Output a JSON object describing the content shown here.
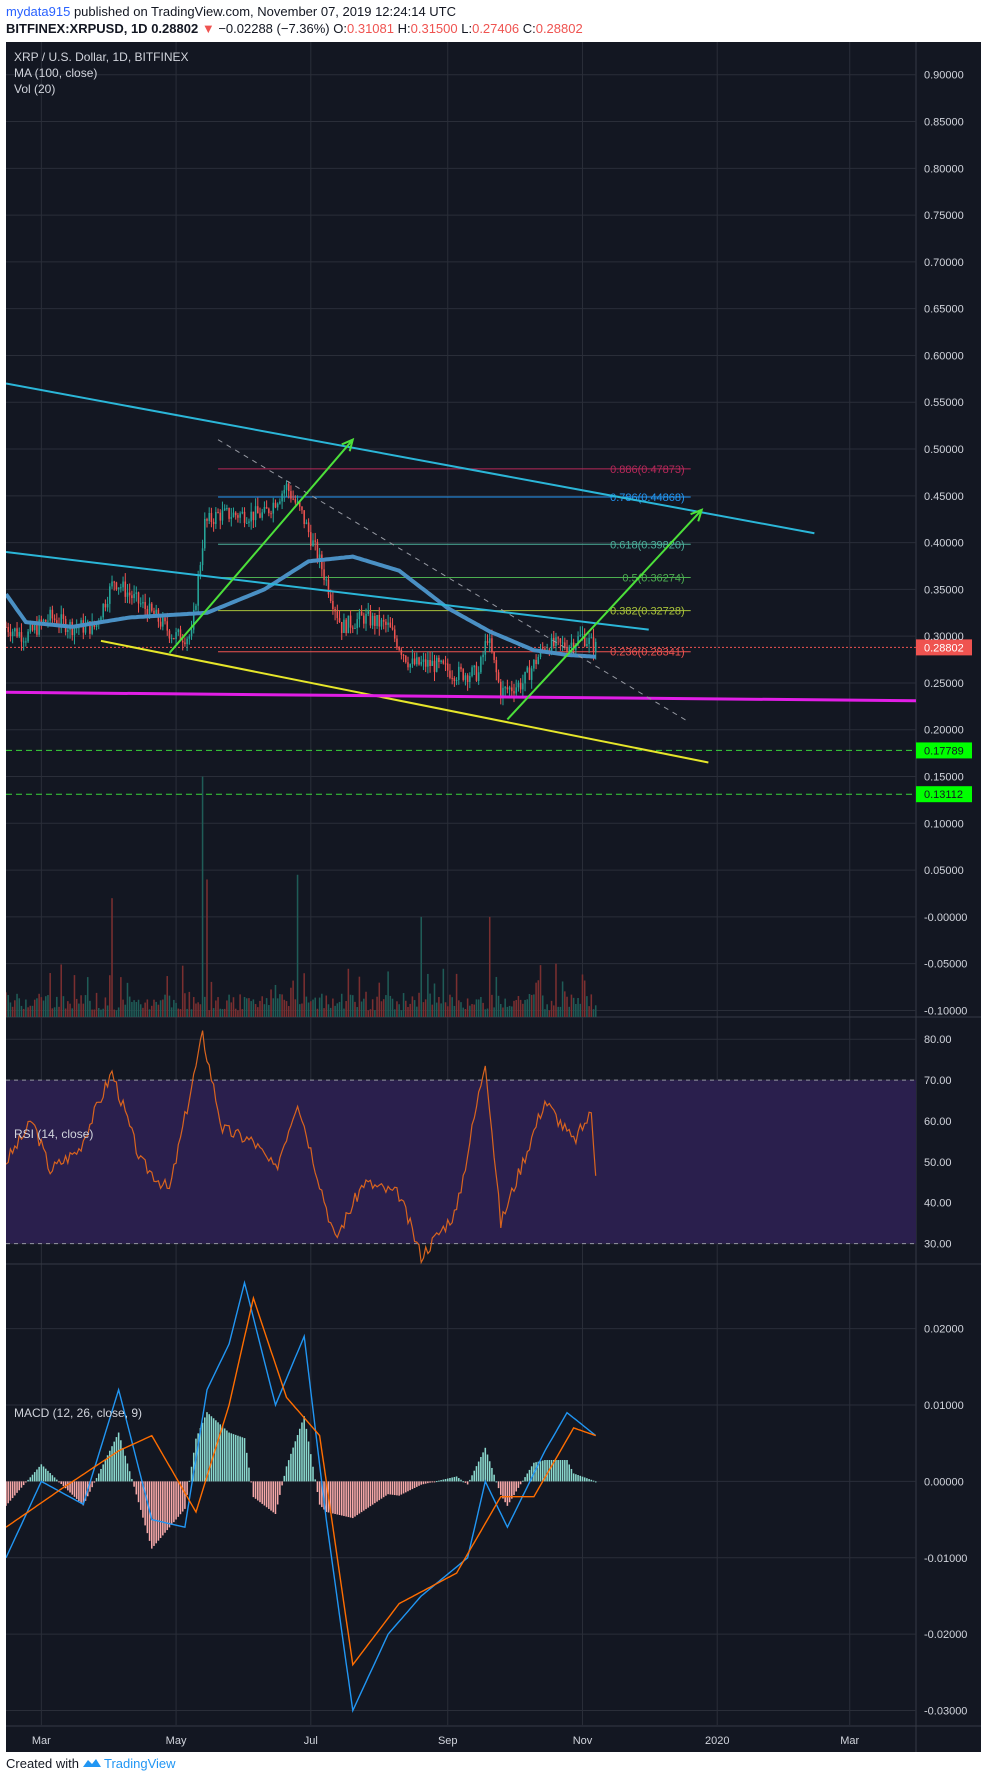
{
  "header": {
    "user": "mydata915",
    "published": "published on TradingView.com, November 07, 2019 12:24:14 UTC",
    "symbol": "BITFINEX:XRPUSD, 1D",
    "last": "0.28802",
    "change_arrow": "▼",
    "change": "−0.02288 (−7.36%)",
    "o_label": "O:",
    "o": "0.31081",
    "h_label": "H:",
    "h": "0.31500",
    "l_label": "L:",
    "l": "0.27406",
    "c_label": "C:",
    "c": "0.28802"
  },
  "legend": {
    "title": "XRP / U.S. Dollar, 1D, BITFINEX",
    "ma": "MA (100, close)",
    "vol": "Vol (20)",
    "rsi": "RSI (14, close)",
    "macd": "MACD (12, 26, close, 9)"
  },
  "footer": {
    "created_with": "Created with",
    "brand": "TradingView",
    "logo_icon": "tradingview-logo-icon"
  },
  "colors": {
    "bg": "#131722",
    "grid": "#2a2e39",
    "axis_text": "#d1d4dc",
    "up": "#26a69a",
    "down": "#ef5350",
    "ma": "#4a90c4",
    "trend_cyan": "#2bb6d8",
    "trend_yellow": "#e6e62a",
    "support_magenta": "#e11ee6",
    "arrow_green": "#4ce03a",
    "dashed_level": "#3ad63a",
    "rsi_line": "#d9641e",
    "rsi_band": "#2a1f4d",
    "macd_line": "#2196f3",
    "signal_line": "#ff6d00",
    "hist_up": "#8ad8cd",
    "hist_down": "#f7a9a9"
  },
  "chart_data": [
    {
      "type": "candlestick",
      "name": "price",
      "y_ticks": [
        "0.90000",
        "0.85000",
        "0.80000",
        "0.75000",
        "0.70000",
        "0.65000",
        "0.60000",
        "0.55000",
        "0.50000",
        "0.45000",
        "0.40000",
        "0.35000",
        "0.30000",
        "0.25000",
        "0.20000",
        "0.15000",
        "0.10000",
        "0.05000",
        "-0.00000",
        "-0.05000",
        "-0.10000"
      ],
      "ylim": [
        -0.107,
        0.935
      ],
      "x_ticks": [
        "Mar",
        "May",
        "Jul",
        "Sep",
        "Nov",
        "2020",
        "Mar"
      ],
      "x_tick_dates": [
        "2019-03-01",
        "2019-05-01",
        "2019-07-01",
        "2019-09-01",
        "2019-11-01",
        "2020-01-01",
        "2020-03-01"
      ],
      "xlim": [
        "2019-02-13",
        "2020-03-31"
      ],
      "last_price": "0.28802",
      "levels": [
        {
          "label": "0.17789",
          "value": 0.17789
        },
        {
          "label": "0.13112",
          "value": 0.13112
        }
      ],
      "fib": [
        {
          "label": "0.886(0.47873)",
          "value": 0.47873,
          "color": "#b7285a"
        },
        {
          "label": "0.786(0.44868)",
          "value": 0.44868,
          "color": "#2196f3"
        },
        {
          "label": "0.618(0.39820)",
          "value": 0.3982,
          "color": "#4caf9a"
        },
        {
          "label": "0.5(0.36274)",
          "value": 0.36274,
          "color": "#4caf50"
        },
        {
          "label": "0.382(0.32728)",
          "value": 0.32728,
          "color": "#a8c23a"
        },
        {
          "label": "0.236(0.28341)",
          "value": 0.28341,
          "color": "#ef5350"
        }
      ],
      "ohlc_anchors": [
        {
          "date": "2019-02-13",
          "close": 0.31
        },
        {
          "date": "2019-02-22",
          "close": 0.3
        },
        {
          "date": "2019-03-05",
          "close": 0.32
        },
        {
          "date": "2019-03-15",
          "close": 0.31
        },
        {
          "date": "2019-03-25",
          "close": 0.31
        },
        {
          "date": "2019-04-03",
          "close": 0.36
        },
        {
          "date": "2019-04-12",
          "close": 0.34
        },
        {
          "date": "2019-04-22",
          "close": 0.32
        },
        {
          "date": "2019-04-30",
          "close": 0.3
        },
        {
          "date": "2019-05-08",
          "close": 0.3
        },
        {
          "date": "2019-05-14",
          "close": 0.42
        },
        {
          "date": "2019-05-20",
          "close": 0.43
        },
        {
          "date": "2019-05-31",
          "close": 0.43
        },
        {
          "date": "2019-06-10",
          "close": 0.43
        },
        {
          "date": "2019-06-20",
          "close": 0.46
        },
        {
          "date": "2019-06-27",
          "close": 0.43
        },
        {
          "date": "2019-07-05",
          "close": 0.38
        },
        {
          "date": "2019-07-15",
          "close": 0.31
        },
        {
          "date": "2019-07-25",
          "close": 0.32
        },
        {
          "date": "2019-08-05",
          "close": 0.31
        },
        {
          "date": "2019-08-15",
          "close": 0.27
        },
        {
          "date": "2019-08-25",
          "close": 0.27
        },
        {
          "date": "2019-09-05",
          "close": 0.26
        },
        {
          "date": "2019-09-15",
          "close": 0.26
        },
        {
          "date": "2019-09-19",
          "close": 0.3
        },
        {
          "date": "2019-09-25",
          "close": 0.24
        },
        {
          "date": "2019-10-05",
          "close": 0.25
        },
        {
          "date": "2019-10-15",
          "close": 0.29
        },
        {
          "date": "2019-10-25",
          "close": 0.29
        },
        {
          "date": "2019-11-01",
          "close": 0.3
        },
        {
          "date": "2019-11-07",
          "close": 0.288
        }
      ],
      "ma_100": [
        {
          "date": "2019-02-13",
          "value": 0.345
        },
        {
          "date": "2019-02-22",
          "value": 0.315
        },
        {
          "date": "2019-03-15",
          "value": 0.31
        },
        {
          "date": "2019-04-10",
          "value": 0.32
        },
        {
          "date": "2019-05-15",
          "value": 0.325
        },
        {
          "date": "2019-06-10",
          "value": 0.35
        },
        {
          "date": "2019-06-30",
          "value": 0.38
        },
        {
          "date": "2019-07-20",
          "value": 0.385
        },
        {
          "date": "2019-08-10",
          "value": 0.37
        },
        {
          "date": "2019-09-01",
          "value": 0.33
        },
        {
          "date": "2019-09-20",
          "value": 0.305
        },
        {
          "date": "2019-10-10",
          "value": 0.285
        },
        {
          "date": "2019-10-25",
          "value": 0.28
        },
        {
          "date": "2019-11-07",
          "value": 0.278
        }
      ],
      "volume_peaks": [
        {
          "date": "2019-03-05",
          "y": -0.06
        },
        {
          "date": "2019-04-02",
          "y": 0.02
        },
        {
          "date": "2019-05-13",
          "y": 0.15
        },
        {
          "date": "2019-05-15",
          "y": 0.04
        },
        {
          "date": "2019-06-25",
          "y": 0.045
        },
        {
          "date": "2019-08-20",
          "y": -0.0
        },
        {
          "date": "2019-09-20",
          "y": -0.0
        },
        {
          "date": "2019-10-20",
          "y": -0.05
        }
      ]
    },
    {
      "type": "line",
      "name": "RSI",
      "y_ticks": [
        "80.00",
        "70.00",
        "60.00",
        "50.00",
        "40.00",
        "30.00"
      ],
      "ylim": [
        25.5,
        82.5
      ],
      "bands": [
        30,
        70
      ],
      "points": [
        {
          "date": "2019-02-13",
          "value": 50
        },
        {
          "date": "2019-02-25",
          "value": 60
        },
        {
          "date": "2019-03-05",
          "value": 48
        },
        {
          "date": "2019-03-18",
          "value": 53
        },
        {
          "date": "2019-04-02",
          "value": 72
        },
        {
          "date": "2019-04-15",
          "value": 50
        },
        {
          "date": "2019-04-28",
          "value": 43
        },
        {
          "date": "2019-05-13",
          "value": 81
        },
        {
          "date": "2019-05-22",
          "value": 58
        },
        {
          "date": "2019-06-05",
          "value": 55
        },
        {
          "date": "2019-06-15",
          "value": 48
        },
        {
          "date": "2019-06-25",
          "value": 65
        },
        {
          "date": "2019-07-05",
          "value": 45
        },
        {
          "date": "2019-07-12",
          "value": 31
        },
        {
          "date": "2019-07-25",
          "value": 45
        },
        {
          "date": "2019-08-10",
          "value": 42
        },
        {
          "date": "2019-08-20",
          "value": 27
        },
        {
          "date": "2019-09-05",
          "value": 38
        },
        {
          "date": "2019-09-18",
          "value": 75
        },
        {
          "date": "2019-09-25",
          "value": 35
        },
        {
          "date": "2019-10-05",
          "value": 50
        },
        {
          "date": "2019-10-15",
          "value": 65
        },
        {
          "date": "2019-10-28",
          "value": 55
        },
        {
          "date": "2019-11-05",
          "value": 62
        },
        {
          "date": "2019-11-07",
          "value": 48
        }
      ]
    },
    {
      "type": "line",
      "name": "MACD",
      "y_ticks": [
        "0.02000",
        "0.01000",
        "0.00000",
        "-0.01000",
        "-0.02000",
        "-0.03000"
      ],
      "ylim": [
        -0.0315,
        0.0265
      ],
      "macd": [
        {
          "date": "2019-02-13",
          "value": -0.01
        },
        {
          "date": "2019-03-01",
          "value": 0.0
        },
        {
          "date": "2019-03-20",
          "value": -0.003
        },
        {
          "date": "2019-04-05",
          "value": 0.012
        },
        {
          "date": "2019-04-20",
          "value": -0.005
        },
        {
          "date": "2019-05-05",
          "value": -0.006
        },
        {
          "date": "2019-05-15",
          "value": 0.012
        },
        {
          "date": "2019-05-25",
          "value": 0.018
        },
        {
          "date": "2019-06-01",
          "value": 0.026
        },
        {
          "date": "2019-06-15",
          "value": 0.01
        },
        {
          "date": "2019-06-28",
          "value": 0.019
        },
        {
          "date": "2019-07-08",
          "value": -0.005
        },
        {
          "date": "2019-07-20",
          "value": -0.03
        },
        {
          "date": "2019-08-05",
          "value": -0.02
        },
        {
          "date": "2019-08-20",
          "value": -0.015
        },
        {
          "date": "2019-09-10",
          "value": -0.01
        },
        {
          "date": "2019-09-18",
          "value": 0.0
        },
        {
          "date": "2019-09-28",
          "value": -0.006
        },
        {
          "date": "2019-10-15",
          "value": 0.004
        },
        {
          "date": "2019-10-25",
          "value": 0.009
        },
        {
          "date": "2019-11-07",
          "value": 0.006
        }
      ],
      "signal": [
        {
          "date": "2019-02-13",
          "value": -0.006
        },
        {
          "date": "2019-03-10",
          "value": -0.001
        },
        {
          "date": "2019-04-05",
          "value": 0.004
        },
        {
          "date": "2019-04-20",
          "value": 0.006
        },
        {
          "date": "2019-05-10",
          "value": -0.004
        },
        {
          "date": "2019-05-25",
          "value": 0.01
        },
        {
          "date": "2019-06-05",
          "value": 0.024
        },
        {
          "date": "2019-06-20",
          "value": 0.011
        },
        {
          "date": "2019-07-05",
          "value": 0.006
        },
        {
          "date": "2019-07-20",
          "value": -0.024
        },
        {
          "date": "2019-08-10",
          "value": -0.016
        },
        {
          "date": "2019-09-05",
          "value": -0.012
        },
        {
          "date": "2019-09-25",
          "value": -0.002
        },
        {
          "date": "2019-10-10",
          "value": -0.002
        },
        {
          "date": "2019-10-28",
          "value": 0.007
        },
        {
          "date": "2019-11-07",
          "value": 0.006
        }
      ]
    }
  ]
}
